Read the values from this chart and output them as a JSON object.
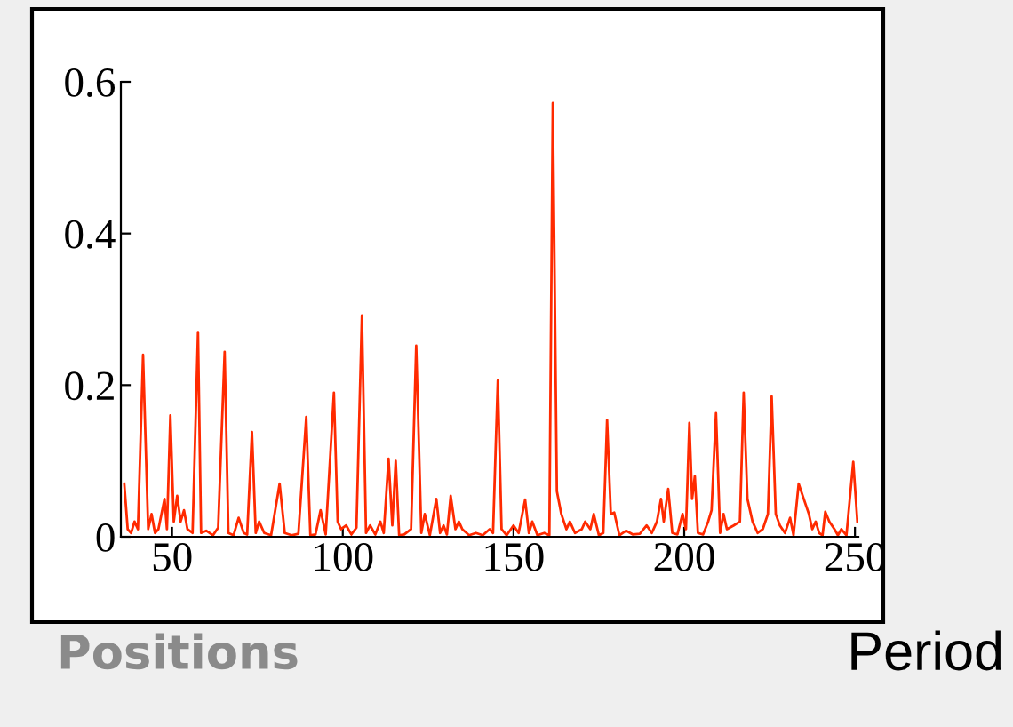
{
  "chart_data": {
    "type": "line",
    "xlabel": "Period",
    "annotations": [
      "Positions"
    ],
    "x": [
      36,
      37,
      38,
      39,
      40,
      41.5,
      43,
      44,
      45,
      46,
      47.8,
      48.5,
      49.5,
      50.5,
      51.5,
      52.5,
      53.5,
      54.5,
      56,
      57.6,
      58.5,
      60,
      62,
      63.5,
      65.4,
      66.5,
      68,
      69.5,
      71,
      72,
      73.4,
      74.5,
      75.5,
      77,
      79,
      81.5,
      83,
      85,
      87,
      89.3,
      90.5,
      92,
      93.5,
      95,
      97.4,
      98.5,
      99.5,
      101,
      102.5,
      104,
      105.6,
      106.8,
      108,
      109.5,
      111,
      112,
      113.4,
      114.5,
      115.5,
      116.5,
      118,
      120,
      121.5,
      123,
      124,
      125.5,
      127.4,
      128.5,
      129.5,
      130.5,
      131.6,
      133,
      134,
      135,
      137,
      139,
      141,
      143,
      144,
      145.4,
      146.5,
      148,
      150,
      151.5,
      153.4,
      154.5,
      155.5,
      157,
      159,
      160.5,
      161.5,
      162.7,
      164,
      165.5,
      166.5,
      168,
      170,
      171,
      172.5,
      173.5,
      175,
      176.3,
      177.4,
      178.5,
      179.5,
      181,
      183,
      185,
      187,
      189,
      190.5,
      192,
      193.2,
      194,
      195.3,
      196.5,
      198,
      199.5,
      200.5,
      201.5,
      202.3,
      203.1,
      204,
      205.5,
      207,
      208,
      209.3,
      210.5,
      211.5,
      212.5,
      214.5,
      216.3,
      217.4,
      218.5,
      220,
      221.5,
      223,
      224.5,
      225.6,
      226.8,
      228,
      229.5,
      231,
      232,
      233.5,
      235,
      236.5,
      237.5,
      238.5,
      239.5,
      240.5,
      241.3,
      242.5,
      244,
      245,
      246,
      247.5,
      249.5,
      250.7
    ],
    "series": [
      {
        "color": "#ff2a00",
        "values": [
          0.07,
          0.01,
          0.005,
          0.02,
          0.01,
          0.24,
          0.01,
          0.03,
          0.005,
          0.01,
          0.05,
          0.01,
          0.16,
          0.02,
          0.054,
          0.02,
          0.035,
          0.01,
          0.005,
          0.27,
          0.005,
          0.008,
          0.002,
          0.012,
          0.244,
          0.005,
          0.002,
          0.025,
          0.005,
          0.003,
          0.138,
          0.005,
          0.02,
          0.005,
          0.002,
          0.07,
          0.005,
          0.002,
          0.004,
          0.158,
          0.002,
          0.003,
          0.035,
          0.003,
          0.19,
          0.02,
          0.01,
          0.015,
          0.003,
          0.012,
          0.292,
          0.005,
          0.015,
          0.003,
          0.02,
          0.005,
          0.103,
          0.015,
          0.1,
          0.002,
          0.003,
          0.01,
          0.252,
          0.005,
          0.03,
          0.002,
          0.05,
          0.005,
          0.015,
          0.003,
          0.054,
          0.01,
          0.02,
          0.01,
          0.002,
          0.005,
          0.002,
          0.01,
          0.005,
          0.206,
          0.01,
          0.002,
          0.015,
          0.005,
          0.049,
          0.005,
          0.02,
          0.002,
          0.005,
          0.002,
          0.572,
          0.06,
          0.03,
          0.01,
          0.02,
          0.005,
          0.01,
          0.02,
          0.01,
          0.03,
          0.002,
          0.005,
          0.154,
          0.03,
          0.032,
          0.002,
          0.008,
          0.003,
          0.004,
          0.015,
          0.005,
          0.02,
          0.05,
          0.02,
          0.063,
          0.005,
          0.003,
          0.03,
          0.01,
          0.15,
          0.05,
          0.08,
          0.005,
          0.003,
          0.02,
          0.035,
          0.163,
          0.005,
          0.03,
          0.01,
          0.015,
          0.02,
          0.19,
          0.05,
          0.02,
          0.005,
          0.01,
          0.03,
          0.185,
          0.03,
          0.015,
          0.005,
          0.025,
          0.002,
          0.07,
          0.05,
          0.03,
          0.01,
          0.02,
          0.005,
          0.002,
          0.033,
          0.02,
          0.01,
          0.002,
          0.01,
          0.002,
          0.099,
          0.02
        ]
      }
    ],
    "xlim": [
      35,
      251
    ],
    "ylim": [
      0,
      0.6
    ],
    "xticks": [
      50,
      100,
      150,
      200,
      250
    ],
    "yticks": [
      0,
      0.2,
      0.4,
      0.6
    ],
    "grid": false,
    "legend": false,
    "marker": "none",
    "line_style": "solid"
  }
}
